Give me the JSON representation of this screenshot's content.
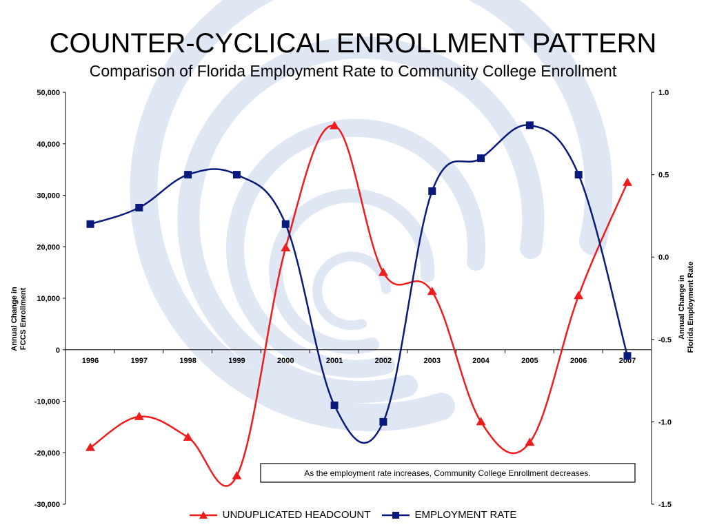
{
  "title": "COUNTER-CYCLICAL ENROLLMENT PATTERN",
  "subtitle": "Comparison of Florida Employment Rate to Community College Enrollment",
  "colors": {
    "headcount": "#ee1c1c",
    "employment": "#0a1a7a",
    "background_swirl": "#dfe6f4"
  },
  "chart_data": {
    "type": "line",
    "x": [
      "1996",
      "1997",
      "1998",
      "1999",
      "2000",
      "2001",
      "2002",
      "2003",
      "2004",
      "2005",
      "2006",
      "2007"
    ],
    "series": [
      {
        "name": "UNDUPLICATED HEADCOUNT",
        "axis": "left",
        "marker": "triangle",
        "values": [
          -19000,
          -13000,
          -17000,
          -24500,
          19800,
          43500,
          15000,
          11300,
          -14000,
          -18000,
          10500,
          32500
        ]
      },
      {
        "name": "EMPLOYMENT RATE",
        "axis": "right",
        "marker": "square",
        "values": [
          0.2,
          0.3,
          0.5,
          0.5,
          0.2,
          -0.9,
          -1.0,
          0.4,
          0.6,
          0.8,
          0.5,
          -0.6
        ]
      }
    ],
    "y_left": {
      "label": "Annual Change in FCCS Enrollment",
      "range": [
        -30000,
        50000
      ],
      "ticks": [
        "50,000",
        "40,000",
        "30,000",
        "20,000",
        "10,000",
        "0",
        "-10,000",
        "-20,000",
        "-30,000"
      ]
    },
    "y_right": {
      "label": "Annual Change in Florida Employment Rate",
      "range": [
        -1.5,
        1.0
      ],
      "ticks": [
        "1.0",
        "0.5",
        "0.0",
        "-0.5",
        "-1.0",
        "-1.5"
      ]
    },
    "annotation": "As the employment rate increases, Community College Enrollment decreases.",
    "legend_position": "bottom",
    "grid": false
  }
}
